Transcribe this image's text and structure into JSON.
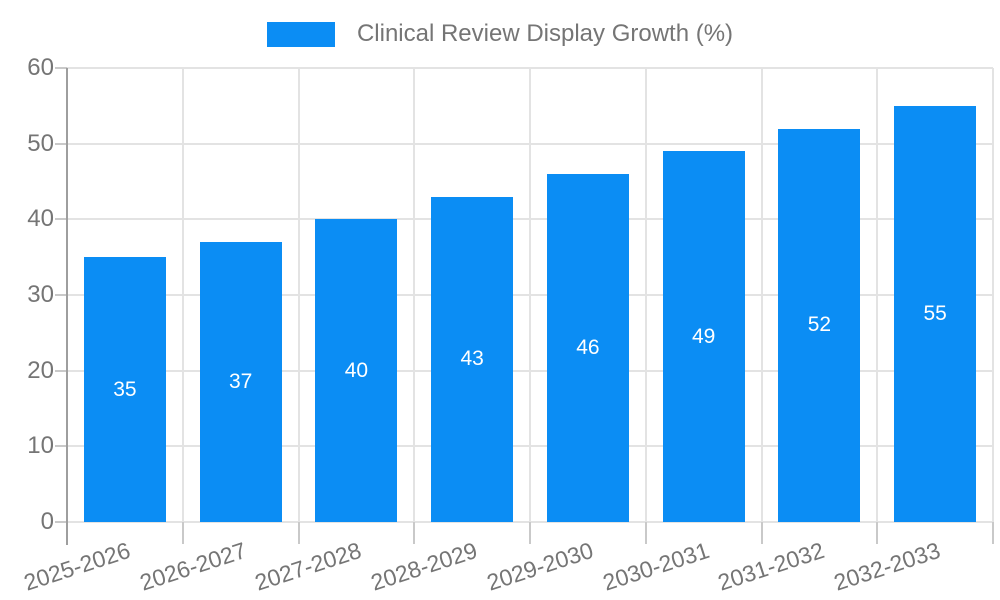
{
  "legend": {
    "label": "Clinical Review Display Growth (%)"
  },
  "chart_data": {
    "type": "bar",
    "title": "",
    "series_name": "Clinical Review Display Growth (%)",
    "categories": [
      "2025-2026",
      "2026-2027",
      "2027-2028",
      "2028-2029",
      "2029-2030",
      "2030-2031",
      "2031-2032",
      "2032-2033"
    ],
    "values": [
      35,
      37,
      40,
      43,
      46,
      49,
      52,
      55
    ],
    "value_labels": [
      "35",
      "37",
      "40",
      "43",
      "46",
      "49",
      "52",
      "55"
    ],
    "xlabel": "",
    "ylabel": "",
    "ylim": [
      0,
      60
    ],
    "yticks": [
      0,
      10,
      20,
      30,
      40,
      50,
      60
    ],
    "grid": true,
    "legend_position": "top-center"
  },
  "colors": {
    "bar": "#0b8df4",
    "value_label": "#ffffff",
    "axis_text": "#757575",
    "grid_line": "#e3e3e3",
    "tick_line": "#c9c9c9",
    "axis_line": "#9e9e9e"
  }
}
